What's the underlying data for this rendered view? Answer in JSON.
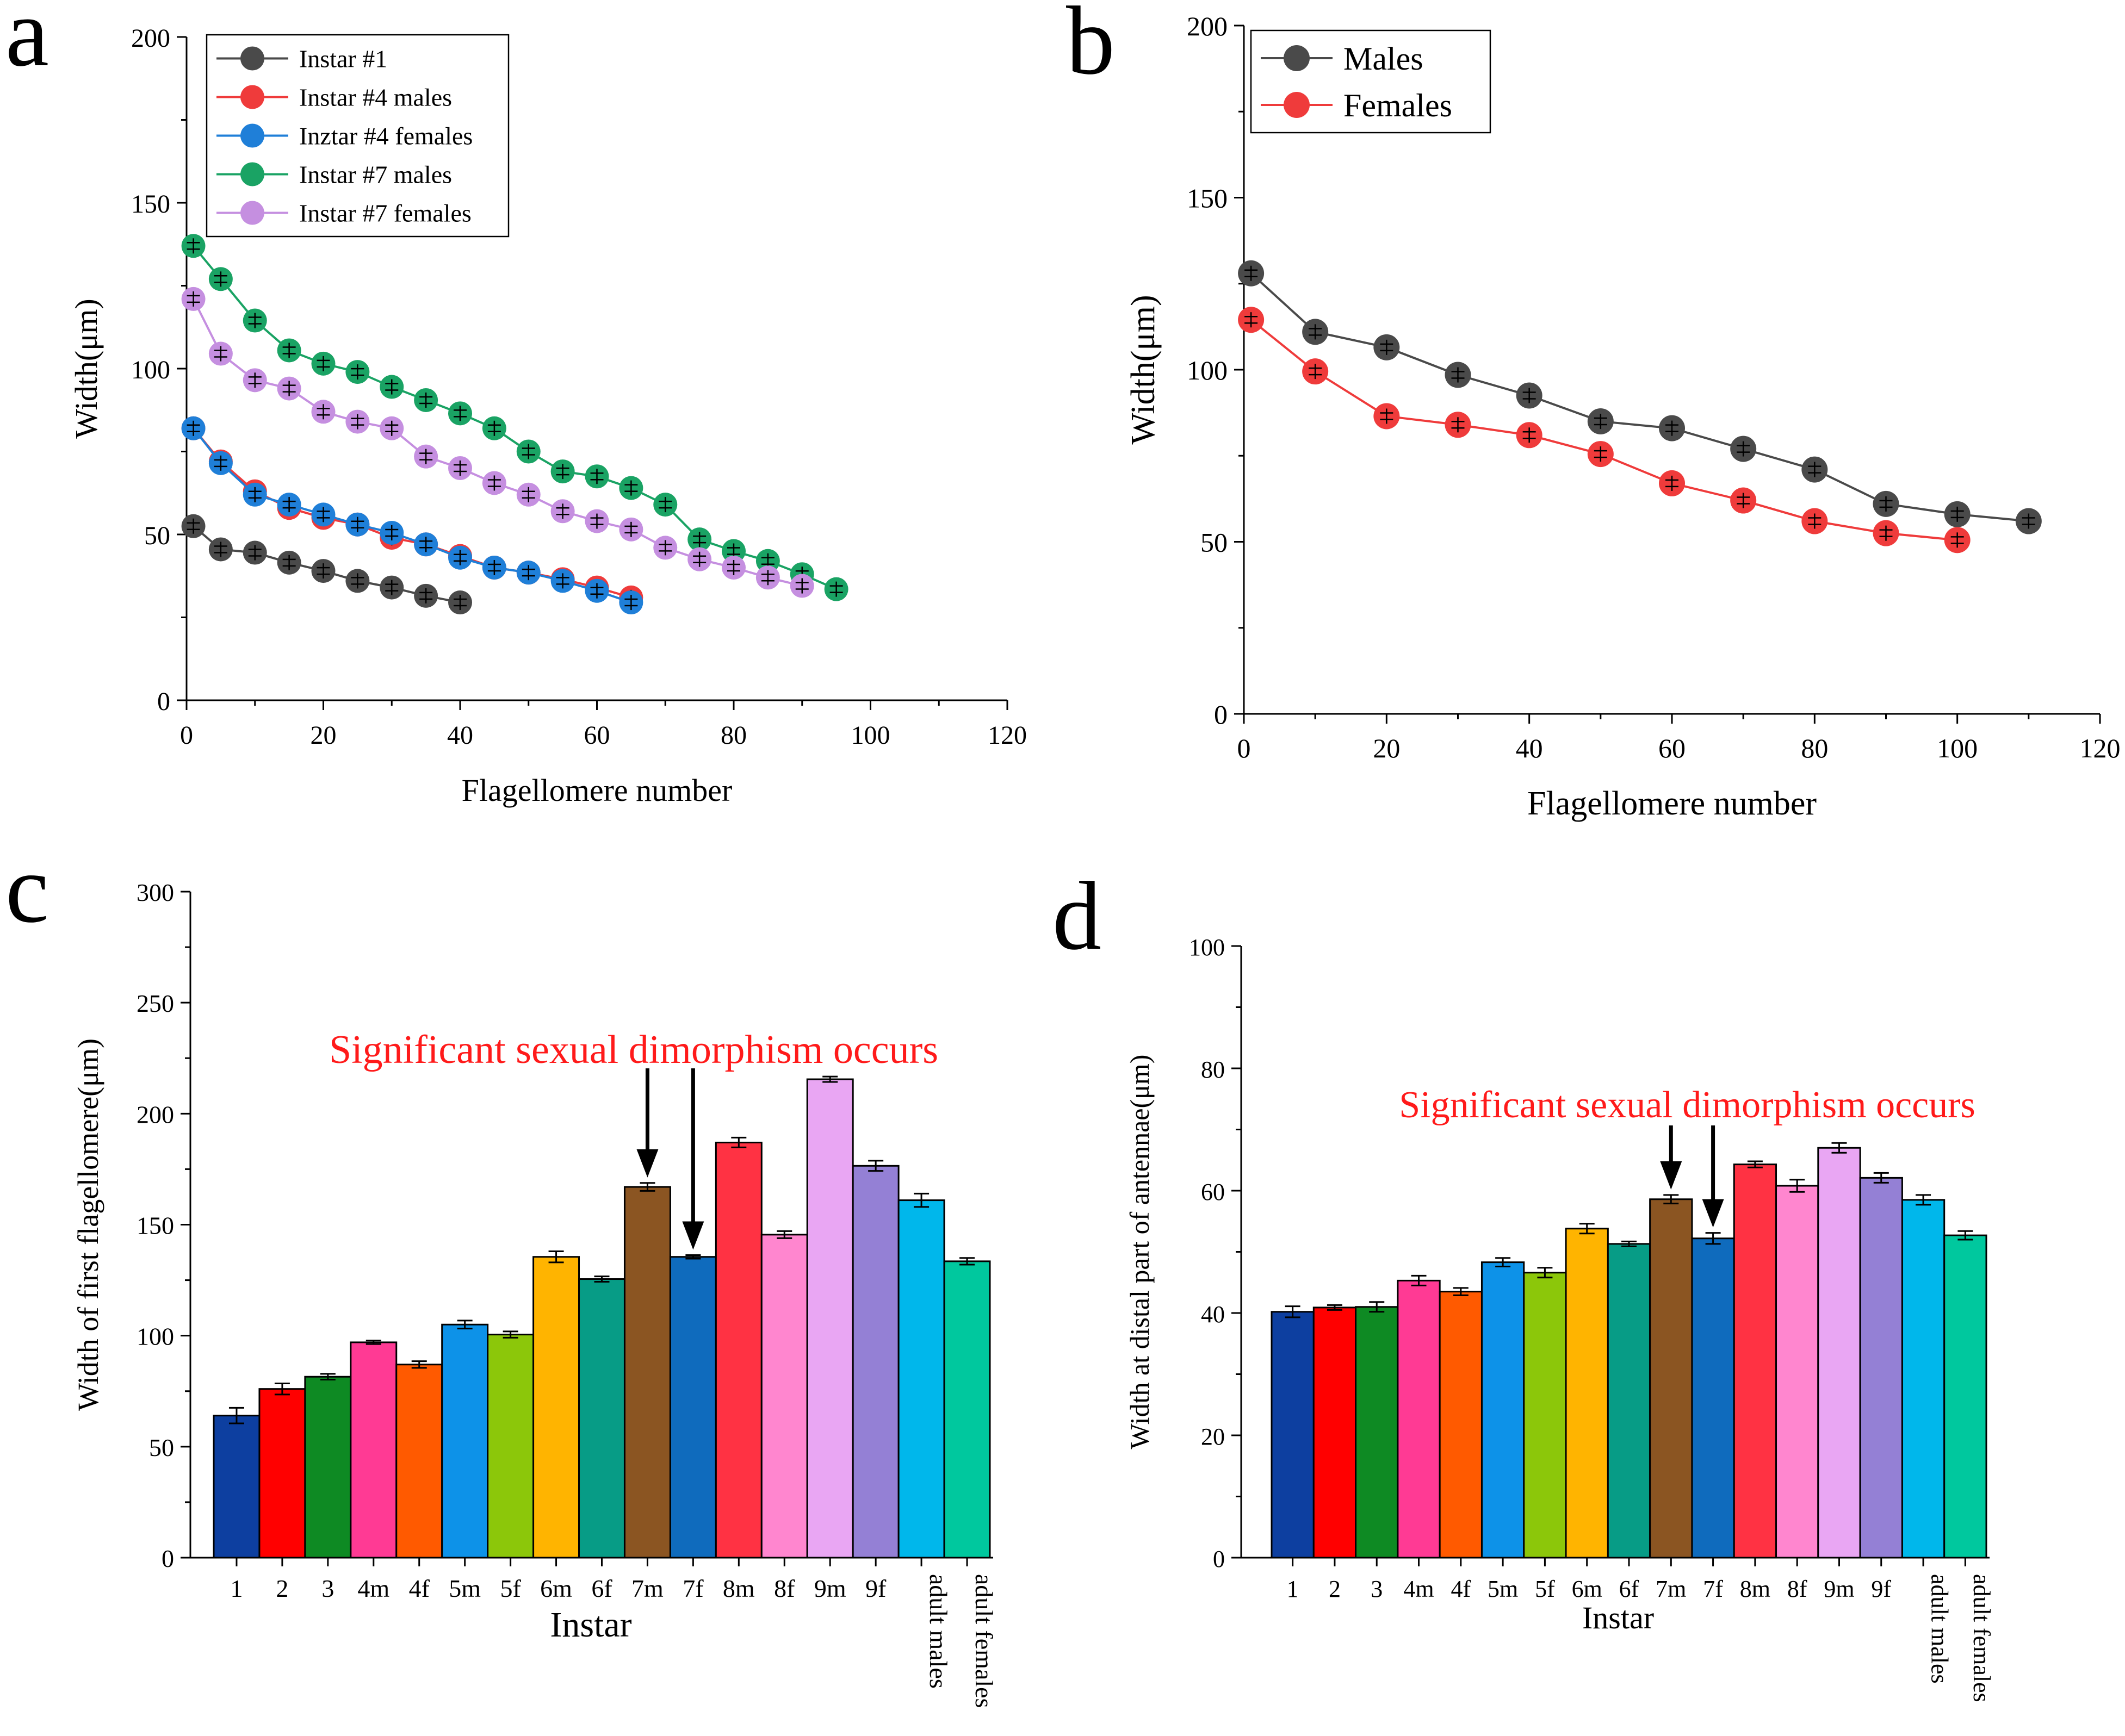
{
  "chart_data": [
    {
      "panel": "a",
      "type": "line",
      "xlabel": "Flagellomere number",
      "ylabel": "Width(μm)",
      "xlim": [
        0,
        120
      ],
      "ylim": [
        0,
        200
      ],
      "xticks": [
        "0",
        "20",
        "40",
        "60",
        "80",
        "100",
        "120"
      ],
      "yticks": [
        "0",
        "50",
        "100",
        "150",
        "200"
      ],
      "legend_position": "top-left",
      "series": [
        {
          "name": "Instar #1",
          "color": "#4a4a4a",
          "x": [
            1,
            5,
            10,
            15,
            20,
            25,
            30,
            35,
            40
          ],
          "y": [
            52.5,
            45.5,
            44.5,
            41.5,
            39,
            36,
            34,
            31.5,
            29.5
          ]
        },
        {
          "name": "Instar #4 males",
          "color": "#ef3b3b",
          "x": [
            1,
            5,
            10,
            15,
            20,
            25,
            30,
            35,
            40,
            45,
            50,
            55,
            60,
            65
          ],
          "y": [
            82,
            72,
            63,
            58,
            55,
            53,
            49,
            47,
            43.5,
            40,
            38.5,
            36.5,
            34,
            31
          ]
        },
        {
          "name": "Inztar #4 females",
          "color": "#1f7fd8",
          "x": [
            1,
            5,
            10,
            15,
            20,
            25,
            30,
            35,
            40,
            45,
            50,
            55,
            60,
            65
          ],
          "y": [
            82,
            71.5,
            62,
            59,
            56,
            53,
            50.5,
            47,
            43,
            40,
            38.5,
            36,
            33,
            29.5
          ]
        },
        {
          "name": "Instar #7 males",
          "color": "#1aa364",
          "x": [
            1,
            5,
            10,
            15,
            20,
            25,
            30,
            35,
            40,
            45,
            50,
            55,
            60,
            65,
            70,
            75,
            80,
            85,
            90,
            95
          ],
          "y": [
            137,
            127,
            114.5,
            105.5,
            101.5,
            99,
            94.5,
            90.5,
            86.5,
            82,
            75,
            69,
            67.5,
            64,
            59,
            48.5,
            45,
            42,
            38,
            33.5
          ]
        },
        {
          "name": "Instar #7 females",
          "color": "#c58fe0",
          "x": [
            1,
            5,
            10,
            15,
            20,
            25,
            30,
            35,
            40,
            45,
            50,
            55,
            60,
            65,
            70,
            75,
            80,
            85,
            90
          ],
          "y": [
            121,
            104.5,
            96.5,
            94,
            87,
            84,
            82,
            73.5,
            70,
            65.5,
            62,
            57,
            54,
            51.5,
            46,
            42.5,
            40,
            37,
            34.5
          ]
        }
      ]
    },
    {
      "panel": "b",
      "type": "line",
      "xlabel": "Flagellomere number",
      "ylabel": "Width(μm)",
      "xlim": [
        0,
        120
      ],
      "ylim": [
        0,
        200
      ],
      "xticks": [
        "0",
        "20",
        "40",
        "60",
        "80",
        "100",
        "120"
      ],
      "yticks": [
        "0",
        "50",
        "100",
        "150",
        "200"
      ],
      "legend_position": "top-left",
      "series": [
        {
          "name": "Males",
          "color": "#4a4a4a",
          "x": [
            1,
            10,
            20,
            30,
            40,
            50,
            60,
            70,
            80,
            90,
            100,
            110
          ],
          "y": [
            128,
            111,
            106.5,
            98.5,
            92.5,
            85,
            83,
            77,
            71,
            61,
            58,
            56
          ]
        },
        {
          "name": "Females",
          "color": "#ef3b3b",
          "x": [
            1,
            10,
            20,
            30,
            40,
            50,
            60,
            70,
            80,
            90,
            100
          ],
          "y": [
            114.5,
            99.5,
            86.5,
            84,
            81,
            75.5,
            67,
            62,
            56,
            52.5,
            50.5
          ]
        }
      ]
    },
    {
      "panel": "c",
      "type": "bar",
      "xlabel": "Instar",
      "ylabel": "Width of first flagellomere(μm)",
      "ylim": [
        0,
        300
      ],
      "yticks": [
        "0",
        "50",
        "100",
        "150",
        "200",
        "250",
        "300"
      ],
      "annotation": "Significant sexual dimorphism occurs",
      "arrow_targets": [
        "7m",
        "7f"
      ],
      "categories": [
        "1",
        "2",
        "3",
        "4m",
        "4f",
        "5m",
        "5f",
        "6m",
        "6f",
        "7m",
        "7f",
        "8m",
        "8f",
        "9m",
        "9f",
        "adult males",
        "adult females"
      ],
      "values": [
        64,
        76,
        81.5,
        97,
        87,
        105,
        100.5,
        135.5,
        125.5,
        167,
        135.5,
        187,
        145.5,
        215.5,
        176.5,
        161,
        133.5
      ],
      "errors": [
        3.5,
        2.5,
        1.3,
        0.8,
        1.5,
        1.8,
        1.4,
        2.5,
        1.2,
        1.8,
        0.8,
        2.2,
        1.6,
        1.2,
        2.3,
        3.0,
        1.5
      ],
      "colors": [
        "#0d3fa0",
        "#ff0000",
        "#0e8a23",
        "#ff3a94",
        "#ff5a00",
        "#0d92e8",
        "#8cc70a",
        "#ffb400",
        "#079c86",
        "#8b5522",
        "#0f6bbd",
        "#ff3243",
        "#ff86cf",
        "#e9a6f3",
        "#9480d5",
        "#00b7eb",
        "#00c89e"
      ]
    },
    {
      "panel": "d",
      "type": "bar",
      "xlabel": "Instar",
      "ylabel": "Width at distal part of antennae(μm)",
      "ylim": [
        0,
        100
      ],
      "yticks": [
        "0",
        "20",
        "40",
        "60",
        "80",
        "100"
      ],
      "annotation": "Significant sexual dimorphism occurs",
      "arrow_targets": [
        "7m",
        "7f"
      ],
      "categories": [
        "1",
        "2",
        "3",
        "4m",
        "4f",
        "5m",
        "5f",
        "6m",
        "6f",
        "7m",
        "7f",
        "8m",
        "8f",
        "9m",
        "9f",
        "adult males",
        "adult females"
      ],
      "values": [
        40.2,
        40.9,
        41,
        45.3,
        43.5,
        48.3,
        46.6,
        53.8,
        51.3,
        58.6,
        52.2,
        64.3,
        60.8,
        67,
        62.1,
        58.5,
        52.7
      ],
      "errors": [
        0.9,
        0.4,
        0.8,
        0.8,
        0.6,
        0.7,
        0.8,
        0.8,
        0.4,
        0.7,
        0.9,
        0.5,
        1.0,
        0.8,
        0.8,
        0.8,
        0.7
      ],
      "colors": [
        "#0d3fa0",
        "#ff0000",
        "#0e8a23",
        "#ff3a94",
        "#ff5a00",
        "#0d92e8",
        "#8cc70a",
        "#ffb400",
        "#079c86",
        "#8b5522",
        "#0f6bbd",
        "#ff3243",
        "#ff86cf",
        "#e9a6f3",
        "#9480d5",
        "#00b7eb",
        "#00c89e"
      ]
    }
  ],
  "panels": {
    "a": {
      "letter": "a"
    },
    "b": {
      "letter": "b"
    },
    "c": {
      "letter": "c"
    },
    "d": {
      "letter": "d"
    }
  }
}
